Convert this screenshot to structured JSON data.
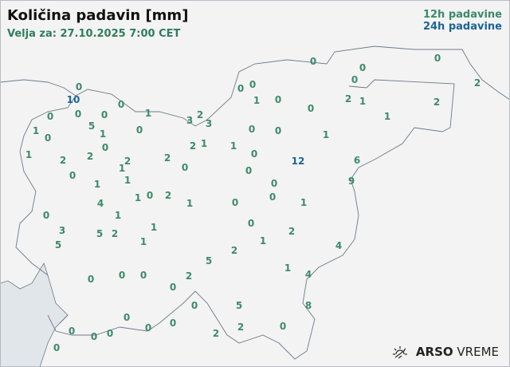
{
  "header": {
    "title": "Količina padavin [mm]",
    "valid": "Velja za: 27.10.2025 7:00 CET"
  },
  "legend": {
    "h12": "12h padavine",
    "h24": "24h padavine",
    "h12_color": "#3d8a6c",
    "h24_color": "#1d6497"
  },
  "logo": {
    "brand": "ARSO",
    "product": "VREME",
    "icon": "sun-icon"
  },
  "stations": [
    {
      "v": "0",
      "t": "12h"
    },
    {
      "v": "0",
      "t": "12h"
    },
    {
      "v": "0",
      "t": "12h"
    },
    {
      "v": "0",
      "t": "12h"
    },
    {
      "v": "2",
      "t": "12h"
    },
    {
      "v": "2",
      "t": "12h"
    },
    {
      "v": "1",
      "t": "12h"
    },
    {
      "v": "2",
      "t": "12h"
    },
    {
      "v": "1",
      "t": "12h"
    },
    {
      "v": "0",
      "t": "12h"
    },
    {
      "v": "10",
      "t": "24h"
    },
    {
      "v": "0",
      "t": "12h"
    },
    {
      "v": "0",
      "t": "12h"
    },
    {
      "v": "0",
      "t": "12h"
    },
    {
      "v": "0",
      "t": "12h"
    },
    {
      "v": "1",
      "t": "12h"
    },
    {
      "v": "3",
      "t": "12h"
    },
    {
      "v": "2",
      "t": "12h"
    },
    {
      "v": "3",
      "t": "12h"
    },
    {
      "v": "1",
      "t": "12h"
    },
    {
      "v": "0",
      "t": "12h"
    },
    {
      "v": "5",
      "t": "12h"
    },
    {
      "v": "1",
      "t": "12h"
    },
    {
      "v": "0",
      "t": "12h"
    },
    {
      "v": "0",
      "t": "12h"
    },
    {
      "v": "0",
      "t": "12h"
    },
    {
      "v": "1",
      "t": "12h"
    },
    {
      "v": "0",
      "t": "12h"
    },
    {
      "v": "0",
      "t": "12h"
    },
    {
      "v": "0",
      "t": "12h"
    },
    {
      "v": "0",
      "t": "12h"
    },
    {
      "v": "1",
      "t": "12h"
    },
    {
      "v": "1",
      "t": "12h"
    },
    {
      "v": "2",
      "t": "12h"
    },
    {
      "v": "2",
      "t": "12h"
    },
    {
      "v": "0",
      "t": "12h"
    },
    {
      "v": "2",
      "t": "12h"
    },
    {
      "v": "1",
      "t": "12h"
    },
    {
      "v": "1",
      "t": "12h"
    },
    {
      "v": "2",
      "t": "12h"
    },
    {
      "v": "2",
      "t": "12h"
    },
    {
      "v": "1",
      "t": "12h"
    },
    {
      "v": "0",
      "t": "12h"
    },
    {
      "v": "1",
      "t": "12h"
    },
    {
      "v": "0",
      "t": "12h"
    },
    {
      "v": "0",
      "t": "12h"
    },
    {
      "v": "12",
      "t": "24h"
    },
    {
      "v": "6",
      "t": "12h"
    },
    {
      "v": "9",
      "t": "12h"
    },
    {
      "v": "0",
      "t": "12h"
    },
    {
      "v": "1",
      "t": "12h"
    },
    {
      "v": "1",
      "t": "12h"
    },
    {
      "v": "0",
      "t": "12h"
    },
    {
      "v": "2",
      "t": "12h"
    },
    {
      "v": "1",
      "t": "12h"
    },
    {
      "v": "0",
      "t": "12h"
    },
    {
      "v": "0",
      "t": "12h"
    },
    {
      "v": "1",
      "t": "12h"
    },
    {
      "v": "0",
      "t": "12h"
    },
    {
      "v": "4",
      "t": "12h"
    },
    {
      "v": "1",
      "t": "12h"
    },
    {
      "v": "0",
      "t": "12h"
    },
    {
      "v": "1",
      "t": "12h"
    },
    {
      "v": "0",
      "t": "12h"
    },
    {
      "v": "2",
      "t": "12h"
    },
    {
      "v": "3",
      "t": "12h"
    },
    {
      "v": "5",
      "t": "12h"
    },
    {
      "v": "2",
      "t": "12h"
    },
    {
      "v": "1",
      "t": "12h"
    },
    {
      "v": "5",
      "t": "12h"
    },
    {
      "v": "1",
      "t": "12h"
    },
    {
      "v": "4",
      "t": "12h"
    },
    {
      "v": "2",
      "t": "12h"
    },
    {
      "v": "5",
      "t": "12h"
    },
    {
      "v": "1",
      "t": "12h"
    },
    {
      "v": "4",
      "t": "12h"
    },
    {
      "v": "0",
      "t": "12h"
    },
    {
      "v": "0",
      "t": "12h"
    },
    {
      "v": "0",
      "t": "12h"
    },
    {
      "v": "2",
      "t": "12h"
    },
    {
      "v": "0",
      "t": "12h"
    },
    {
      "v": "0",
      "t": "12h"
    },
    {
      "v": "5",
      "t": "12h"
    },
    {
      "v": "8",
      "t": "12h"
    },
    {
      "v": "0",
      "t": "12h"
    },
    {
      "v": "0",
      "t": "12h"
    },
    {
      "v": "0",
      "t": "12h"
    },
    {
      "v": "0",
      "t": "12h"
    },
    {
      "v": "0",
      "t": "12h"
    },
    {
      "v": "0",
      "t": "12h"
    },
    {
      "v": "2",
      "t": "12h"
    },
    {
      "v": "2",
      "t": "12h"
    },
    {
      "v": "0",
      "t": "12h"
    },
    {
      "v": "0",
      "t": "12h"
    }
  ]
}
